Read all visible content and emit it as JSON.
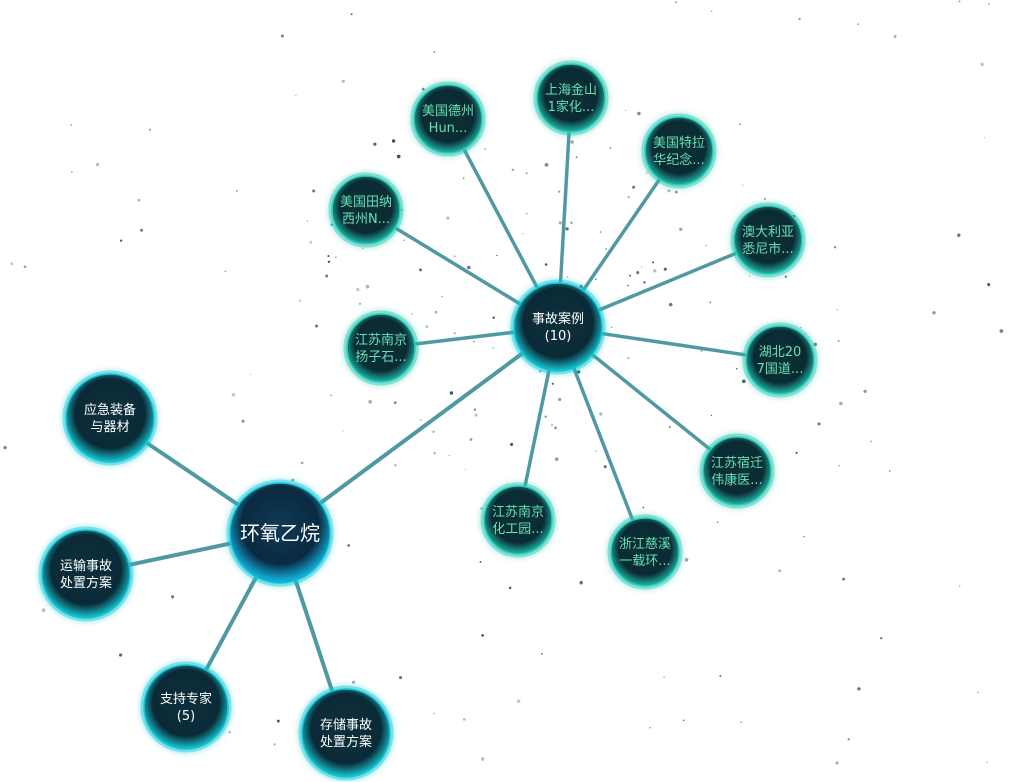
{
  "colors": {
    "background": "#ffffff",
    "edge": "#3f8f98",
    "node_fill_dark": "#0b2a38",
    "node_rim": "#10c6d6",
    "hub_label": "#ffffff",
    "case_label": "#66e0b4",
    "speck": "#0d3b48"
  },
  "root": {
    "id": "root",
    "label": [
      "环氧乙烷"
    ],
    "kind": "root"
  },
  "branches": [
    {
      "id": "cases",
      "label": [
        "事故案例",
        "(10)"
      ],
      "kind": "hub",
      "parent": "root"
    },
    {
      "id": "equipment",
      "label": [
        "应急装备",
        "与器材"
      ],
      "kind": "hub",
      "parent": "root"
    },
    {
      "id": "transport",
      "label": [
        "运输事故",
        "处置方案"
      ],
      "kind": "hub",
      "parent": "root"
    },
    {
      "id": "experts",
      "label": [
        "支持专家",
        "(5)"
      ],
      "kind": "hub",
      "parent": "root"
    },
    {
      "id": "storage",
      "label": [
        "存储事故",
        "处置方案"
      ],
      "kind": "hub",
      "parent": "root"
    }
  ],
  "cases": [
    {
      "id": "c1",
      "label": [
        "美国德州",
        "Hun..."
      ],
      "kind": "case",
      "parent": "cases"
    },
    {
      "id": "c2",
      "label": [
        "上海金山",
        "1家化..."
      ],
      "kind": "case",
      "parent": "cases"
    },
    {
      "id": "c3",
      "label": [
        "美国特拉",
        "华纪念..."
      ],
      "kind": "case",
      "parent": "cases"
    },
    {
      "id": "c4",
      "label": [
        "澳大利亚",
        "悉尼市..."
      ],
      "kind": "case",
      "parent": "cases"
    },
    {
      "id": "c5",
      "label": [
        "湖北20",
        "7国道..."
      ],
      "kind": "case",
      "parent": "cases"
    },
    {
      "id": "c6",
      "label": [
        "江苏宿迁",
        "伟康医..."
      ],
      "kind": "case",
      "parent": "cases"
    },
    {
      "id": "c7",
      "label": [
        "浙江慈溪",
        "一载环..."
      ],
      "kind": "case",
      "parent": "cases"
    },
    {
      "id": "c8",
      "label": [
        "江苏南京",
        "化工园..."
      ],
      "kind": "case",
      "parent": "cases"
    },
    {
      "id": "c9",
      "label": [
        "江苏南京",
        "扬子石..."
      ],
      "kind": "case",
      "parent": "cases"
    },
    {
      "id": "c10",
      "label": [
        "美国田纳",
        "西州N..."
      ],
      "kind": "case",
      "parent": "cases"
    }
  ]
}
